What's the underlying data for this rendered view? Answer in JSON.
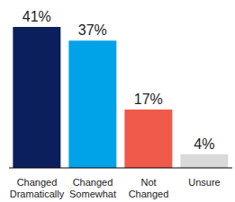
{
  "chart_data": {
    "type": "bar",
    "categories": [
      "Changed Dramatically",
      "Changed Somewhat",
      "Not Changed",
      "Unsure"
    ],
    "values": [
      41,
      37,
      17,
      4
    ],
    "value_labels": [
      "41%",
      "37%",
      "17%",
      "4%"
    ],
    "colors": [
      "#0b1f5c",
      "#00a3e8",
      "#f05a4a",
      "#d9d9d9"
    ],
    "ylim": [
      0,
      41
    ],
    "data_labels": true,
    "tick_labels": "x",
    "grid": false
  }
}
